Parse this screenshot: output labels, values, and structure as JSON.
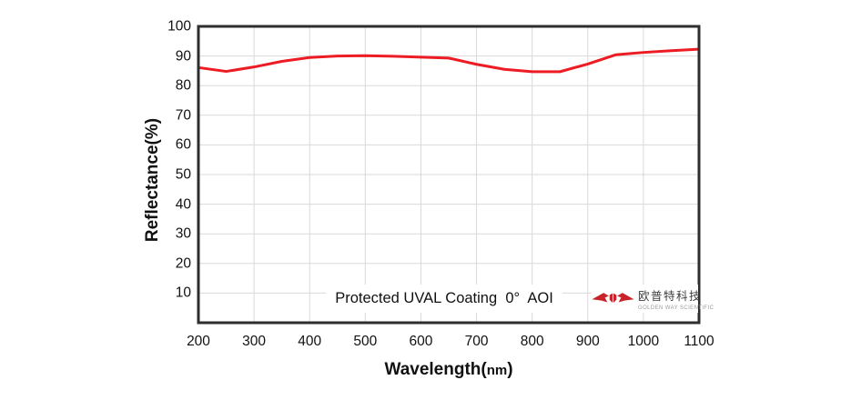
{
  "chart_data": {
    "type": "line",
    "title": "Protected UVAL Coating  0°  AOI",
    "xlabel": "Wavelength(nm)",
    "xlabel_parts": {
      "main": "Wavelength(",
      "unit": "nm",
      "close": ")"
    },
    "ylabel": "Reflectance(%)",
    "xlim": [
      200,
      1100
    ],
    "ylim": [
      0,
      100
    ],
    "x_ticks": [
      200,
      300,
      400,
      500,
      600,
      700,
      800,
      900,
      1000,
      1100
    ],
    "y_ticks": [
      10,
      20,
      30,
      40,
      50,
      60,
      70,
      80,
      90,
      100
    ],
    "grid": true,
    "legend": "none",
    "series": [
      {
        "name": "Reflectance",
        "color": "#ed1c24",
        "x": [
          200,
          250,
          300,
          350,
          400,
          450,
          500,
          550,
          600,
          650,
          700,
          750,
          800,
          850,
          900,
          950,
          1000,
          1050,
          1100
        ],
        "y": [
          86.1,
          84.8,
          86.3,
          88.2,
          89.5,
          90.0,
          90.1,
          89.9,
          89.6,
          89.3,
          87.2,
          85.5,
          84.7,
          84.7,
          87.3,
          90.4,
          91.2,
          91.8,
          92.3
        ]
      }
    ]
  },
  "logo": {
    "name_cn": "欧普特科技",
    "name_en": "GOLDEN WAY SCIENTIFIC",
    "mark_color": "#c8232b",
    "watermark_opacity": 0.09
  },
  "colors": {
    "background": "#ffffff",
    "grid": "#d9d9d9",
    "axis_border": "#2e2e2e",
    "text": "#111111"
  }
}
